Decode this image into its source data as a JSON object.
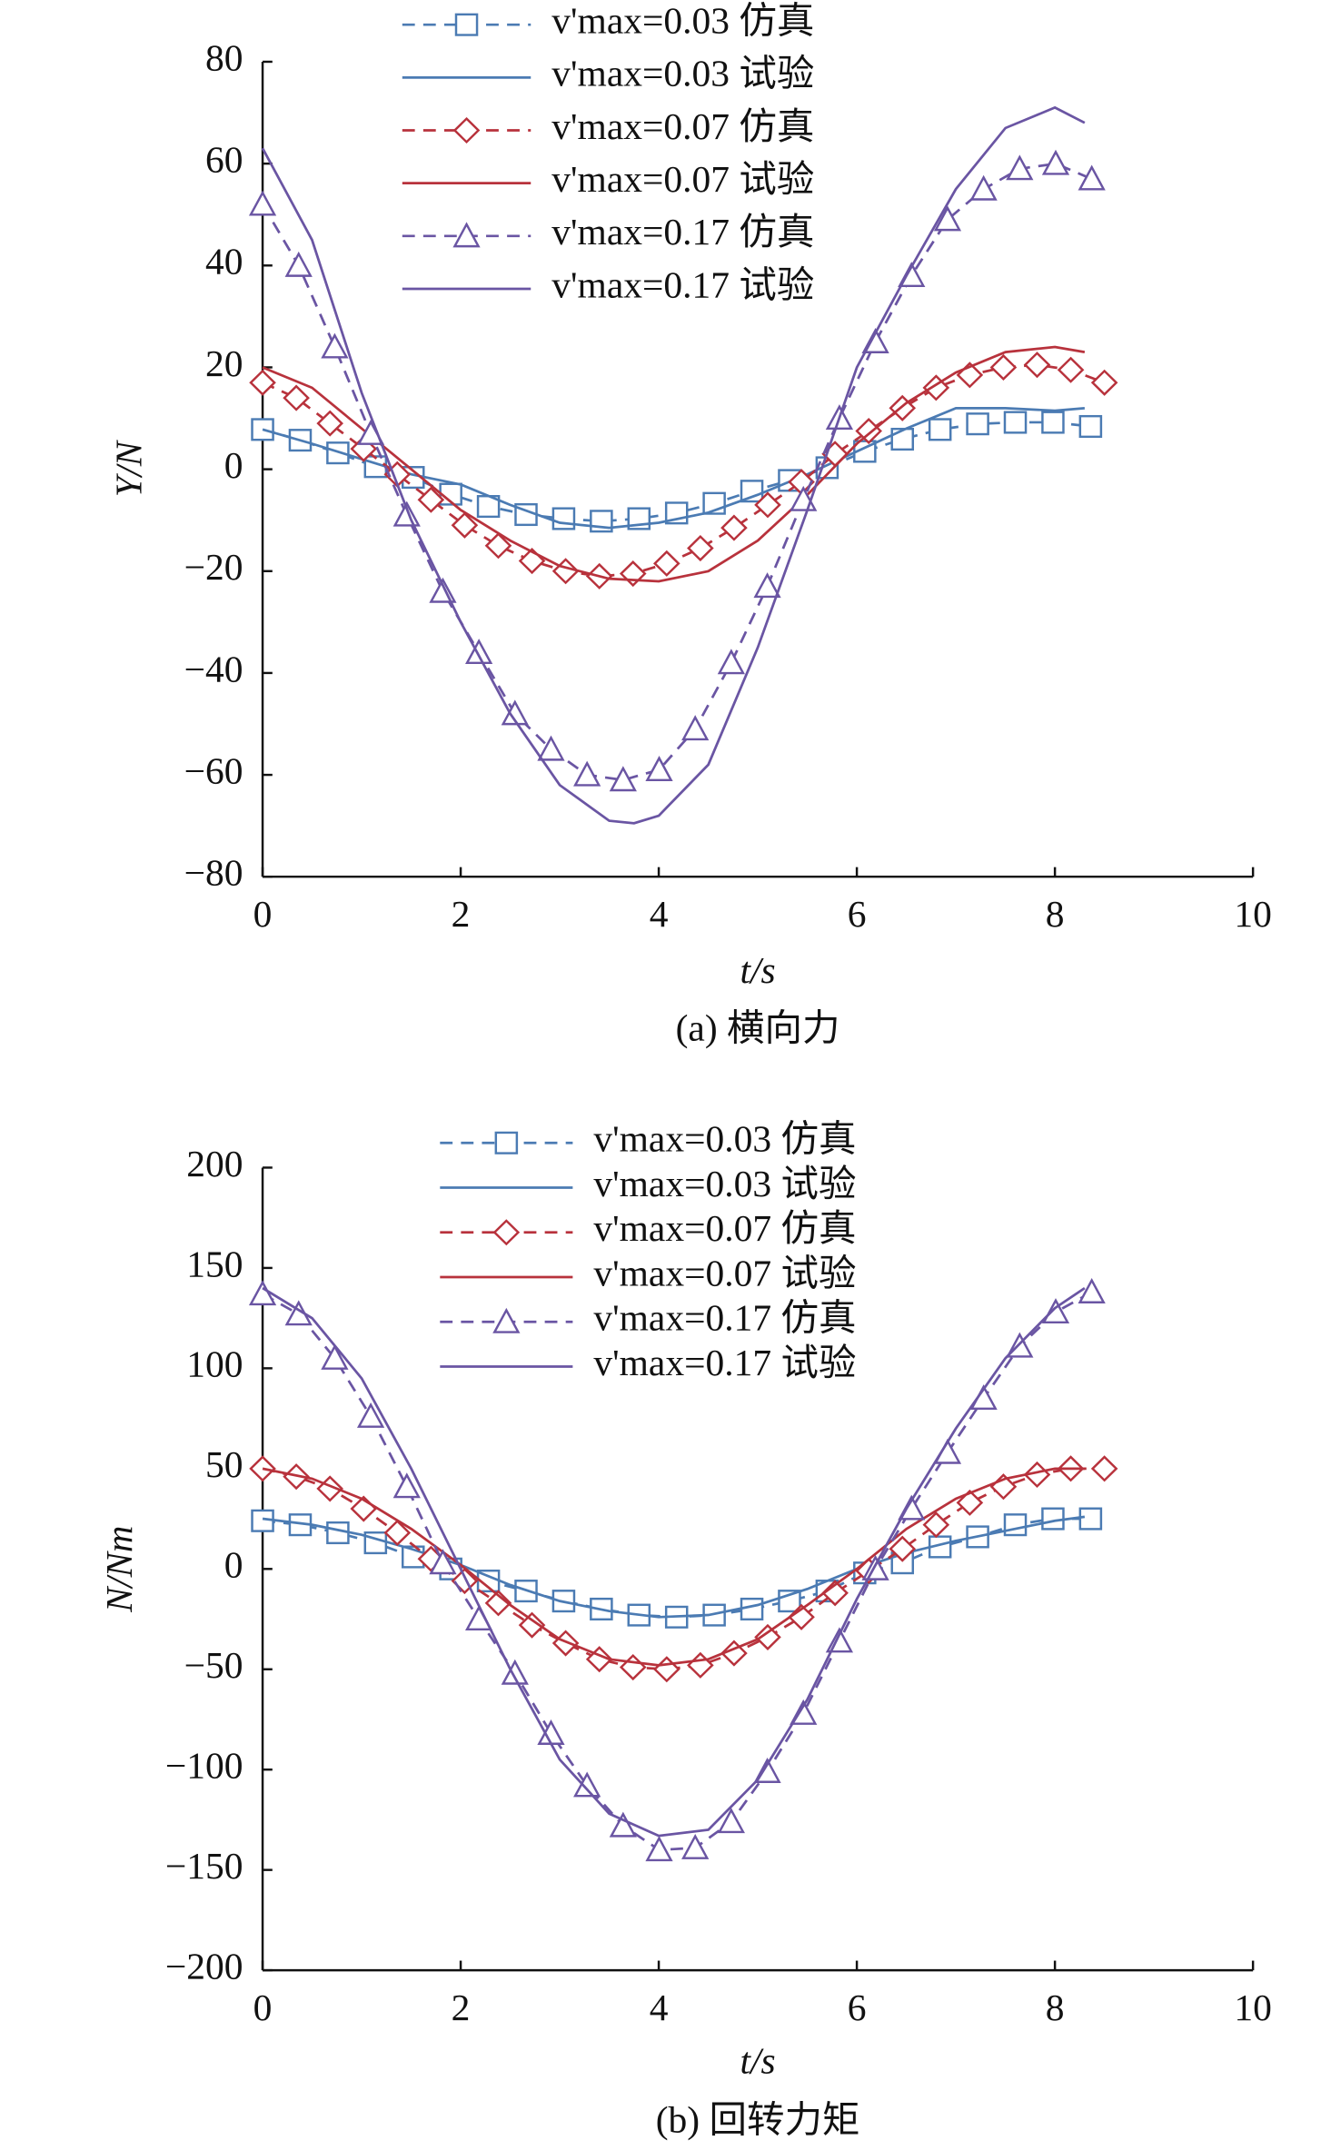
{
  "chart_data": [
    {
      "type": "line",
      "xlabel": "t/s",
      "ylabel": "Y/N",
      "caption": "(a) 横向力",
      "xlim": [
        0,
        10
      ],
      "xticks": [
        0,
        2,
        4,
        6,
        8,
        10
      ],
      "ylim": [
        -80,
        80
      ],
      "yticks": [
        {
          "value": -80,
          "label": "−80"
        },
        {
          "value": -60,
          "label": "−60"
        },
        {
          "value": -40,
          "label": "−40"
        },
        {
          "value": -20,
          "label": "−20"
        },
        0,
        20,
        40,
        60,
        80
      ],
      "series": [
        {
          "name": "v'max=0.03 仿真",
          "color": "#4b7bb3",
          "marker": "square",
          "dashed": true,
          "x": [
            0,
            0.38,
            0.76,
            1.14,
            1.52,
            1.9,
            2.28,
            2.66,
            3.04,
            3.42,
            3.8,
            4.18,
            4.56,
            4.94,
            5.32,
            5.7,
            6.08,
            6.46,
            6.84,
            7.22,
            7.6,
            7.98,
            8.36
          ],
          "values": [
            7.8,
            5.7,
            3.2,
            0.5,
            -1.6,
            -4.9,
            -7.3,
            -8.9,
            -9.7,
            -10.2,
            -9.7,
            -8.6,
            -6.7,
            -4.3,
            -2.2,
            0.3,
            3.5,
            5.9,
            7.8,
            8.9,
            9.2,
            9.2,
            8.4
          ]
        },
        {
          "name": "v'max=0.03 试验",
          "color": "#4b7bb3",
          "marker": null,
          "dashed": false,
          "x": [
            0,
            0.5,
            1,
            1.5,
            2,
            2.5,
            3,
            3.5,
            4,
            4.5,
            5,
            5.5,
            6,
            6.5,
            7,
            7.5,
            8,
            8.3
          ],
          "values": [
            7.8,
            5,
            2,
            -1,
            -3,
            -7,
            -10.5,
            -11.5,
            -10.5,
            -8.5,
            -5,
            -1,
            3.5,
            8,
            12,
            12,
            11.5,
            12
          ]
        },
        {
          "name": "v'max=0.07 仿真",
          "color": "#b8323c",
          "marker": "diamond",
          "dashed": true,
          "x": [
            0,
            0.34,
            0.68,
            1.02,
            1.36,
            1.7,
            2.04,
            2.38,
            2.72,
            3.06,
            3.4,
            3.74,
            4.08,
            4.42,
            4.76,
            5.1,
            5.44,
            5.78,
            6.12,
            6.46,
            6.8,
            7.14,
            7.48,
            7.82,
            8.16,
            8.5
          ],
          "values": [
            17,
            14,
            9,
            4,
            -1,
            -6,
            -11,
            -15,
            -18,
            -20,
            -21,
            -20.5,
            -18.5,
            -15.5,
            -11.5,
            -7,
            -2.5,
            3,
            7.5,
            12,
            16,
            18.5,
            20,
            20.5,
            19.5,
            17
          ]
        },
        {
          "name": "v'max=0.07 试验",
          "color": "#b8323c",
          "marker": null,
          "dashed": false,
          "x": [
            0,
            0.5,
            1,
            1.5,
            2,
            2.5,
            3,
            3.5,
            4,
            4.5,
            5,
            5.5,
            6,
            6.5,
            7,
            7.5,
            8,
            8.3
          ],
          "values": [
            20,
            16,
            8,
            0,
            -8,
            -14,
            -19,
            -21.5,
            -22,
            -20,
            -14,
            -5,
            5,
            13,
            19,
            23,
            24,
            23
          ]
        },
        {
          "name": "v'max=0.17 仿真",
          "color": "#6a55a3",
          "marker": "triangle",
          "dashed": true,
          "x": [
            0,
            0.364,
            0.728,
            1.092,
            1.456,
            1.82,
            2.184,
            2.548,
            2.912,
            3.276,
            3.64,
            4.004,
            4.368,
            4.732,
            5.096,
            5.46,
            5.824,
            6.188,
            6.552,
            6.916,
            7.28,
            7.644,
            8.008,
            8.372
          ],
          "values": [
            52,
            40,
            24,
            7,
            -9,
            -24,
            -36,
            -48,
            -55,
            -60,
            -61,
            -59,
            -51,
            -38,
            -23,
            -6,
            10,
            25,
            38,
            49,
            55,
            59,
            60,
            57
          ]
        },
        {
          "name": "v'max=0.17 试验",
          "color": "#6a55a3",
          "marker": null,
          "dashed": false,
          "x": [
            0,
            0.5,
            1,
            1.5,
            2,
            2.5,
            3,
            3.5,
            3.75,
            4,
            4.5,
            5,
            5.5,
            6,
            6.5,
            7,
            7.5,
            8,
            8.3
          ],
          "values": [
            63,
            45,
            15,
            -10,
            -30,
            -48,
            -62,
            -69,
            -69.5,
            -68,
            -58,
            -35,
            -8,
            20,
            38,
            55,
            67,
            71,
            68
          ]
        }
      ]
    },
    {
      "type": "line",
      "xlabel": "t/s",
      "ylabel": "N/Nm",
      "caption": "(b) 回转力矩",
      "xlim": [
        0,
        10
      ],
      "xticks": [
        0,
        2,
        4,
        6,
        8,
        10
      ],
      "ylim": [
        -200,
        200
      ],
      "yticks": [
        {
          "value": -200,
          "label": "−200"
        },
        {
          "value": -150,
          "label": "−150"
        },
        {
          "value": -100,
          "label": "−100"
        },
        {
          "value": -50,
          "label": "−50"
        },
        0,
        50,
        100,
        150,
        200
      ],
      "series": [
        {
          "name": "v'max=0.03 仿真",
          "color": "#4b7bb3",
          "marker": "square",
          "dashed": true,
          "x": [
            0,
            0.38,
            0.76,
            1.14,
            1.52,
            1.9,
            2.28,
            2.66,
            3.04,
            3.42,
            3.8,
            4.18,
            4.56,
            4.94,
            5.32,
            5.7,
            6.08,
            6.46,
            6.84,
            7.22,
            7.6,
            7.98,
            8.36
          ],
          "values": [
            24,
            22,
            18,
            13,
            6,
            0,
            -6,
            -11,
            -16,
            -20,
            -23,
            -24,
            -23,
            -20,
            -16,
            -11,
            -2,
            3,
            11,
            16,
            22,
            25,
            25
          ]
        },
        {
          "name": "v'max=0.03 试验",
          "color": "#4b7bb3",
          "marker": null,
          "dashed": false,
          "x": [
            0,
            0.5,
            1,
            1.5,
            2,
            2.5,
            3,
            3.5,
            4,
            4.5,
            5,
            5.5,
            6,
            6.5,
            7,
            7.5,
            8,
            8.3
          ],
          "values": [
            25,
            22,
            17,
            10,
            2,
            -8,
            -16,
            -21,
            -24,
            -23,
            -18,
            -10,
            0,
            8,
            14,
            19,
            24,
            26
          ]
        },
        {
          "name": "v'max=0.07 仿真",
          "color": "#b8323c",
          "marker": "diamond",
          "dashed": true,
          "x": [
            0,
            0.34,
            0.68,
            1.02,
            1.36,
            1.7,
            2.04,
            2.38,
            2.72,
            3.06,
            3.4,
            3.74,
            4.08,
            4.42,
            4.76,
            5.1,
            5.44,
            5.78,
            6.12,
            6.46,
            6.8,
            7.14,
            7.48,
            7.82,
            8.16,
            8.5
          ],
          "values": [
            50,
            46,
            40,
            30,
            18,
            5,
            -6,
            -17,
            -28,
            -37,
            -45,
            -49,
            -50,
            -48,
            -42,
            -34,
            -24,
            -12,
            -1,
            10,
            22,
            33,
            41,
            47,
            50,
            50
          ]
        },
        {
          "name": "v'max=0.07 试验",
          "color": "#b8323c",
          "marker": null,
          "dashed": false,
          "x": [
            0,
            0.5,
            1,
            1.5,
            2,
            2.5,
            3,
            3.5,
            4,
            4.5,
            5,
            5.5,
            6,
            6.5,
            7,
            7.5,
            8,
            8.3
          ],
          "values": [
            50,
            45,
            35,
            20,
            2,
            -18,
            -35,
            -45,
            -48,
            -45,
            -35,
            -18,
            0,
            20,
            35,
            45,
            50,
            50
          ]
        },
        {
          "name": "v'max=0.17 仿真",
          "color": "#6a55a3",
          "marker": "triangle",
          "dashed": true,
          "x": [
            0,
            0.364,
            0.728,
            1.092,
            1.456,
            1.82,
            2.184,
            2.548,
            2.912,
            3.276,
            3.64,
            4.004,
            4.368,
            4.732,
            5.096,
            5.46,
            5.824,
            6.188,
            6.552,
            6.916,
            7.28,
            7.644,
            8.008,
            8.372
          ],
          "values": [
            137,
            127,
            105,
            76,
            41,
            3,
            -25,
            -52,
            -82,
            -108,
            -128,
            -140,
            -139,
            -126,
            -101,
            -72,
            -36,
            0,
            30,
            58,
            85,
            111,
            128,
            138
          ]
        },
        {
          "name": "v'max=0.17 试验",
          "color": "#6a55a3",
          "marker": null,
          "dashed": false,
          "x": [
            0,
            0.5,
            1,
            1.5,
            2,
            2.5,
            3,
            3.5,
            4,
            4.5,
            5,
            5.5,
            6,
            6.5,
            7,
            7.5,
            8,
            8.3
          ],
          "values": [
            140,
            125,
            95,
            50,
            0,
            -50,
            -95,
            -122,
            -133,
            -130,
            -105,
            -65,
            -15,
            30,
            70,
            105,
            130,
            140
          ]
        }
      ]
    }
  ]
}
